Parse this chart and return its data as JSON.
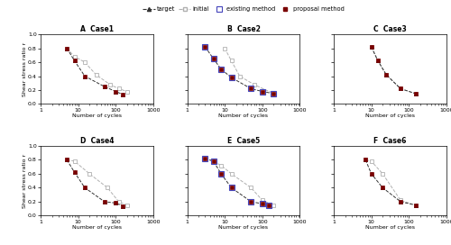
{
  "cases": [
    "Case1",
    "Case2",
    "Case3",
    "Case4",
    "Case5",
    "Case6"
  ],
  "case_labels": [
    "A  Case1",
    "B  Case2",
    "C  Case3",
    "D  Case4",
    "E  Case5",
    "F  Case6"
  ],
  "target": [
    {
      "x": [
        5,
        8,
        15,
        50,
        100,
        150
      ],
      "y": [
        0.8,
        0.62,
        0.4,
        0.25,
        0.18,
        0.14
      ]
    },
    {
      "x": [
        3,
        5,
        8,
        15,
        50,
        100,
        200
      ],
      "y": [
        0.82,
        0.65,
        0.5,
        0.38,
        0.22,
        0.18,
        0.15
      ]
    },
    {
      "x": [
        10,
        15,
        25,
        60,
        150
      ],
      "y": [
        0.82,
        0.62,
        0.42,
        0.22,
        0.15
      ]
    },
    {
      "x": [
        5,
        8,
        15,
        50,
        100,
        150
      ],
      "y": [
        0.8,
        0.62,
        0.4,
        0.2,
        0.18,
        0.14
      ]
    },
    {
      "x": [
        3,
        5,
        8,
        15,
        50,
        100,
        150
      ],
      "y": [
        0.82,
        0.78,
        0.6,
        0.4,
        0.2,
        0.17,
        0.15
      ]
    },
    {
      "x": [
        7,
        10,
        20,
        60,
        150
      ],
      "y": [
        0.8,
        0.6,
        0.4,
        0.2,
        0.15
      ]
    }
  ],
  "initial": [
    {
      "x": [
        5,
        8,
        15,
        30,
        70,
        120,
        200
      ],
      "y": [
        0.8,
        0.68,
        0.6,
        0.42,
        0.28,
        0.22,
        0.18
      ]
    },
    {
      "x": [
        10,
        15,
        25,
        60,
        200
      ],
      "y": [
        0.8,
        0.62,
        0.4,
        0.28,
        0.15
      ]
    },
    {
      "x": [
        10,
        15,
        25,
        60,
        150
      ],
      "y": [
        0.82,
        0.62,
        0.42,
        0.22,
        0.15
      ]
    },
    {
      "x": [
        5,
        8,
        20,
        60,
        120,
        200
      ],
      "y": [
        0.8,
        0.78,
        0.6,
        0.4,
        0.2,
        0.15
      ]
    },
    {
      "x": [
        3,
        5,
        8,
        15,
        50,
        100,
        200
      ],
      "y": [
        0.82,
        0.78,
        0.72,
        0.6,
        0.4,
        0.22,
        0.15
      ]
    },
    {
      "x": [
        7,
        10,
        20,
        60,
        150
      ],
      "y": [
        0.8,
        0.78,
        0.6,
        0.22,
        0.15
      ]
    }
  ],
  "existing": [
    {
      "x": [],
      "y": []
    },
    {
      "x": [
        3,
        5,
        8,
        15,
        50,
        100,
        200
      ],
      "y": [
        0.82,
        0.65,
        0.5,
        0.38,
        0.22,
        0.18,
        0.15
      ]
    },
    {
      "x": [],
      "y": []
    },
    {
      "x": [],
      "y": []
    },
    {
      "x": [
        3,
        5,
        8,
        15,
        50,
        100,
        150
      ],
      "y": [
        0.82,
        0.78,
        0.6,
        0.4,
        0.2,
        0.17,
        0.15
      ]
    },
    {
      "x": [],
      "y": []
    }
  ],
  "proposal": [
    {
      "x": [
        5,
        8,
        15,
        50,
        100,
        150
      ],
      "y": [
        0.8,
        0.62,
        0.4,
        0.25,
        0.18,
        0.14
      ]
    },
    {
      "x": [
        3,
        5,
        8,
        15,
        50,
        100,
        200
      ],
      "y": [
        0.82,
        0.65,
        0.5,
        0.38,
        0.22,
        0.18,
        0.15
      ]
    },
    {
      "x": [
        10,
        15,
        25,
        60,
        150
      ],
      "y": [
        0.82,
        0.62,
        0.42,
        0.22,
        0.15
      ]
    },
    {
      "x": [
        5,
        8,
        15,
        50,
        100,
        150
      ],
      "y": [
        0.8,
        0.62,
        0.4,
        0.2,
        0.18,
        0.14
      ]
    },
    {
      "x": [
        3,
        5,
        8,
        15,
        50,
        100,
        150
      ],
      "y": [
        0.82,
        0.78,
        0.6,
        0.4,
        0.2,
        0.17,
        0.15
      ]
    },
    {
      "x": [
        7,
        10,
        20,
        60,
        150
      ],
      "y": [
        0.8,
        0.6,
        0.4,
        0.2,
        0.15
      ]
    }
  ],
  "target_color": "#333333",
  "initial_color": "#b0b0b0",
  "existing_color": "#4444bb",
  "proposal_color": "#7a0000",
  "xlim": [
    1,
    1000
  ],
  "ylim": [
    0,
    1
  ],
  "yticks": [
    0,
    0.2,
    0.4,
    0.6,
    0.8,
    1.0
  ],
  "xlabel": "Number of cycles",
  "ylabel": "Shear stress ratio r"
}
